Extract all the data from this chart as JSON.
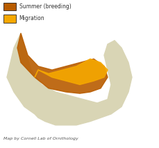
{
  "title": "",
  "legend_items": [
    {
      "label": "Summer (breeding)",
      "color": "#B85C00"
    },
    {
      "label": "Migration",
      "color": "#F5A800"
    }
  ],
  "footnote": "Map by Cornell Lab of Ornithology",
  "background_color": "#FFFFFF",
  "ocean_hatch_color": "#6BAED6",
  "land_base_color": "#D9D5B5",
  "border_color": "#8899AA",
  "figsize": [
    2.3,
    2.14
  ],
  "dpi": 100
}
